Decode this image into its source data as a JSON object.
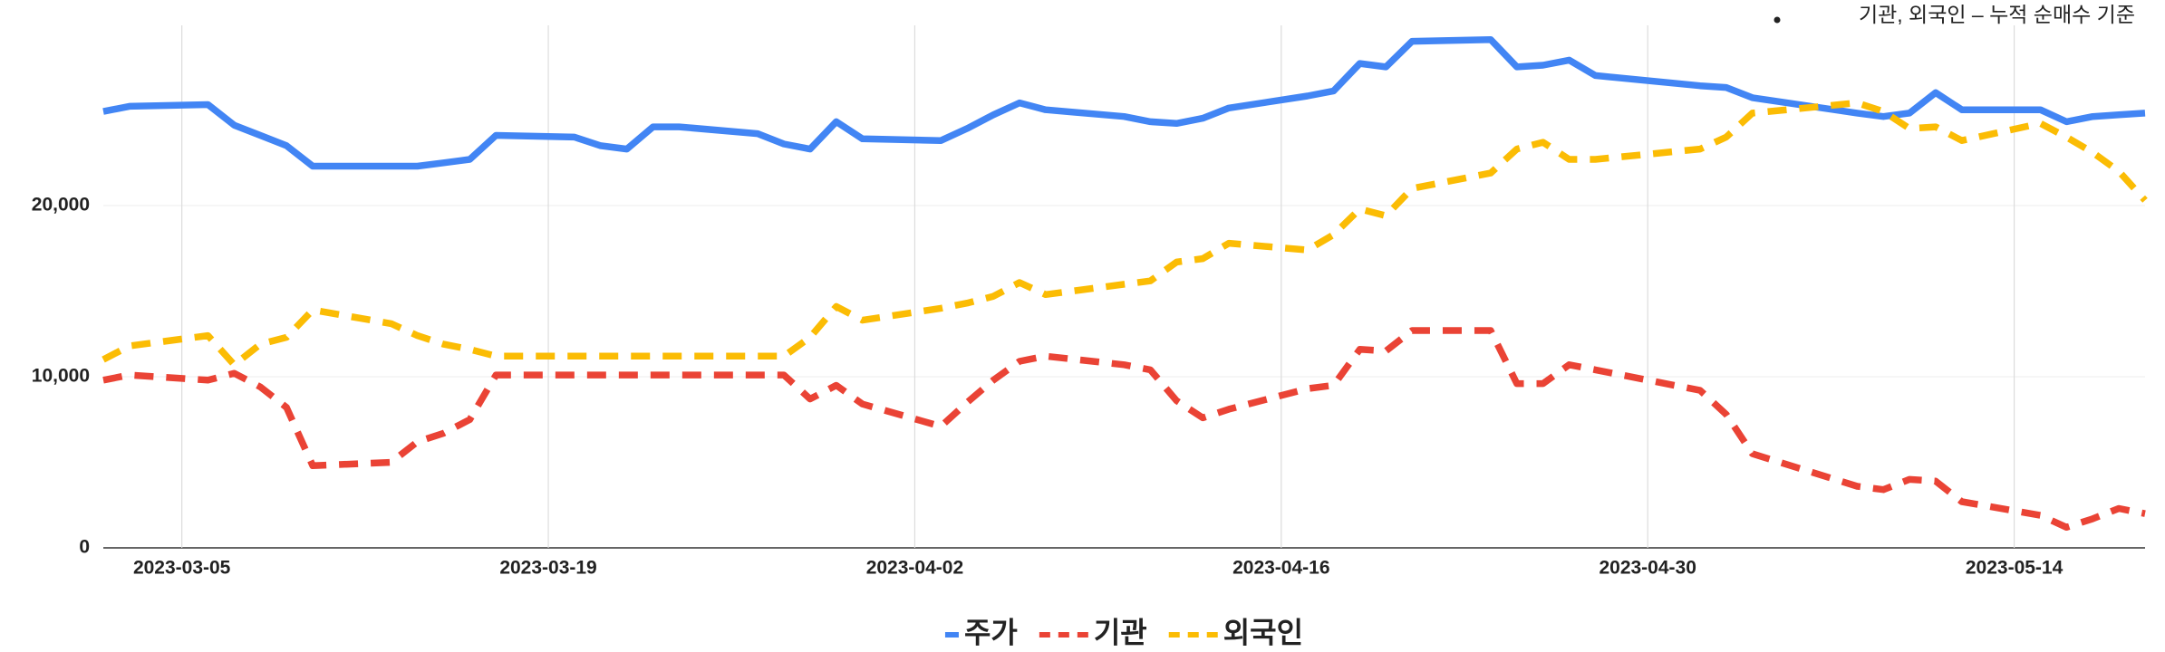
{
  "chart_data": {
    "type": "line",
    "annotation": "기관, 외국인 – 누적 순매수 기준",
    "x": [
      "2023-03-02",
      "2023-03-03",
      "2023-03-06",
      "2023-03-07",
      "2023-03-08",
      "2023-03-09",
      "2023-03-10",
      "2023-03-13",
      "2023-03-14",
      "2023-03-15",
      "2023-03-16",
      "2023-03-17",
      "2023-03-20",
      "2023-03-21",
      "2023-03-22",
      "2023-03-23",
      "2023-03-24",
      "2023-03-27",
      "2023-03-28",
      "2023-03-29",
      "2023-03-30",
      "2023-03-31",
      "2023-04-03",
      "2023-04-04",
      "2023-04-05",
      "2023-04-06",
      "2023-04-07",
      "2023-04-10",
      "2023-04-11",
      "2023-04-12",
      "2023-04-13",
      "2023-04-14",
      "2023-04-17",
      "2023-04-18",
      "2023-04-19",
      "2023-04-20",
      "2023-04-21",
      "2023-04-24",
      "2023-04-25",
      "2023-04-26",
      "2023-04-27",
      "2023-04-28",
      "2023-05-02",
      "2023-05-03",
      "2023-05-04",
      "2023-05-08",
      "2023-05-09",
      "2023-05-10",
      "2023-05-11",
      "2023-05-12",
      "2023-05-15",
      "2023-05-16",
      "2023-05-17",
      "2023-05-18",
      "2023-05-19"
    ],
    "series": [
      {
        "name": "주가",
        "color": "#4285f4",
        "line_style": "solid",
        "values": [
          25500,
          25800,
          25900,
          24700,
          24100,
          23500,
          22300,
          22300,
          22300,
          22500,
          22700,
          24100,
          24000,
          23500,
          23300,
          24600,
          24600,
          24200,
          23600,
          23300,
          24900,
          23900,
          23800,
          24500,
          25300,
          26000,
          25600,
          25200,
          24900,
          24800,
          25100,
          25700,
          26400,
          26700,
          28300,
          28100,
          29600,
          29700,
          28100,
          28200,
          28500,
          27600,
          27000,
          26900,
          26300,
          25400,
          25200,
          25400,
          26600,
          25600,
          25600,
          24900,
          25200,
          25300,
          25400
        ]
      },
      {
        "name": "기관",
        "color": "#ea4335",
        "line_style": "dashed",
        "values": [
          9800,
          10100,
          9800,
          10200,
          9400,
          8200,
          4800,
          5000,
          6200,
          6700,
          7500,
          10100,
          10100,
          10100,
          10100,
          10100,
          10100,
          10100,
          10100,
          8700,
          9500,
          8400,
          7100,
          8500,
          9800,
          10900,
          11200,
          10700,
          10400,
          8600,
          7600,
          8100,
          9300,
          9500,
          11600,
          11500,
          12700,
          12700,
          9600,
          9600,
          10700,
          10400,
          9200,
          7800,
          5500,
          3600,
          3400,
          4000,
          3900,
          2700,
          1900,
          1200,
          1700,
          2300,
          2000
        ]
      },
      {
        "name": "외국인",
        "color": "#fbbc04",
        "line_style": "dashed",
        "values": [
          11000,
          11800,
          12400,
          10700,
          11900,
          12300,
          13900,
          13100,
          12400,
          11900,
          11600,
          11200,
          11200,
          11200,
          11200,
          11200,
          11200,
          11200,
          11200,
          12300,
          14100,
          13300,
          14000,
          14300,
          14700,
          15500,
          14800,
          15400,
          15600,
          16700,
          16900,
          17800,
          17400,
          18300,
          19800,
          19400,
          21000,
          21900,
          23300,
          23700,
          22700,
          22700,
          23300,
          24000,
          25400,
          26000,
          25500,
          24500,
          24600,
          23800,
          24800,
          24000,
          23100,
          22000,
          20300
        ]
      }
    ],
    "xlim": [
      "2023-03-02",
      "2023-05-19"
    ],
    "xticks": [
      "2023-03-05",
      "2023-03-19",
      "2023-04-02",
      "2023-04-16",
      "2023-04-30",
      "2023-05-14"
    ],
    "ylim": [
      0,
      30000
    ],
    "yticks": [
      0,
      {
        "value": 10000,
        "label": "10,000"
      },
      {
        "value": 20000,
        "label": "20,000"
      }
    ],
    "grid": true,
    "legend": "bottom"
  }
}
